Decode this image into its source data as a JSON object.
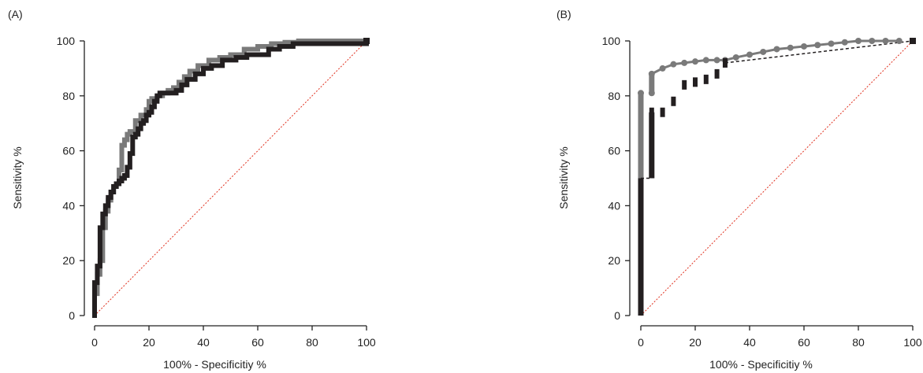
{
  "chart_data": [
    {
      "type": "line",
      "panel_label": "(A)",
      "xlabel": "100% - Specificitiy %",
      "ylabel": "Sensitivity %",
      "xlim": [
        0,
        100
      ],
      "ylim": [
        0,
        100
      ],
      "xticks": [
        "0",
        "20",
        "40",
        "60",
        "80",
        "100"
      ],
      "yticks": [
        "0",
        "20",
        "40",
        "60",
        "80",
        "100"
      ],
      "grid": false,
      "reference_line": {
        "color": "#e0301e",
        "style": "dotted",
        "from": [
          0,
          0
        ],
        "to": [
          100,
          100
        ]
      },
      "series": [
        {
          "color": "#7a7a7a",
          "style": "step",
          "x": [
            0,
            0,
            1,
            1,
            2,
            2,
            3,
            3,
            4,
            4,
            5,
            5,
            6,
            7,
            8,
            9,
            9,
            10,
            10,
            11,
            12,
            13,
            14,
            15,
            15,
            17,
            19,
            20,
            21,
            23,
            25,
            27,
            29,
            31,
            33,
            35,
            38,
            42,
            46,
            50,
            55,
            60,
            65,
            70,
            75,
            80,
            90,
            100
          ],
          "y": [
            0,
            8,
            8,
            15,
            15,
            20,
            20,
            32,
            32,
            38,
            38,
            42,
            45,
            47,
            48,
            49,
            53,
            56,
            62,
            64,
            66,
            67,
            67,
            68,
            71,
            73,
            75,
            78,
            79,
            80,
            81,
            82,
            83,
            85,
            87,
            89,
            91,
            93,
            94,
            95,
            97,
            98,
            99,
            99.5,
            100,
            100,
            100,
            100
          ]
        },
        {
          "color": "#231f20",
          "style": "step",
          "x": [
            0,
            0,
            1,
            1,
            2,
            2,
            3,
            3,
            4,
            5,
            6,
            7,
            8,
            9,
            10,
            11,
            12,
            13,
            13,
            14,
            14,
            15,
            16,
            17,
            18,
            19,
            20,
            21,
            22,
            23,
            24,
            26,
            28,
            30,
            32,
            34,
            37,
            40,
            43,
            47,
            52,
            56,
            60,
            64,
            68,
            72,
            73,
            100
          ],
          "y": [
            0,
            12,
            12,
            18,
            18,
            32,
            32,
            37,
            40,
            43,
            45,
            47,
            48,
            49,
            50,
            51,
            54,
            56,
            59,
            61,
            65,
            66,
            68,
            70,
            71,
            73,
            74,
            76,
            78,
            80,
            81,
            81,
            81,
            82,
            84,
            86,
            88,
            90,
            91,
            93,
            94,
            95,
            95,
            97,
            98,
            98,
            99,
            100
          ]
        }
      ]
    },
    {
      "type": "line",
      "panel_label": "(B)",
      "xlabel": "100% - Specificitiy %",
      "ylabel": "Sensitivity %",
      "xlim": [
        0,
        100
      ],
      "ylim": [
        0,
        100
      ],
      "xticks": [
        "0",
        "20",
        "40",
        "60",
        "80",
        "100"
      ],
      "yticks": [
        "0",
        "20",
        "40",
        "60",
        "80",
        "100"
      ],
      "grid": false,
      "reference_line": {
        "color": "#e0301e",
        "style": "dotted",
        "from": [
          0,
          0
        ],
        "to": [
          100,
          100
        ]
      },
      "series": [
        {
          "color": "#7a7a7a",
          "style": "step-markers",
          "x": [
            0,
            0,
            4,
            4,
            8,
            12,
            16,
            20,
            24,
            28,
            31,
            35,
            40,
            45,
            50,
            55,
            60,
            65,
            70,
            75,
            80,
            85,
            90,
            95,
            100
          ],
          "y": [
            0,
            81,
            81,
            88,
            90,
            91.5,
            92,
            92.5,
            93,
            93,
            93,
            94,
            95,
            96,
            97,
            97.5,
            98,
            98.5,
            99,
            99.5,
            100,
            100,
            100,
            100,
            100
          ],
          "dashed_segment": {
            "from": [
              31,
              92
            ],
            "to": [
              100,
              100
            ]
          }
        },
        {
          "color": "#231f20",
          "style": "step-markers",
          "x": [
            0,
            0,
            4,
            4,
            8,
            12,
            16,
            20,
            24,
            28,
            31,
            100
          ],
          "y": [
            0,
            50,
            50,
            74,
            74,
            78,
            84,
            85,
            86,
            88,
            92,
            100
          ],
          "dashed_segment": {
            "from": [
              0,
              50
            ],
            "to": [
              4,
              50
            ]
          }
        }
      ]
    }
  ]
}
